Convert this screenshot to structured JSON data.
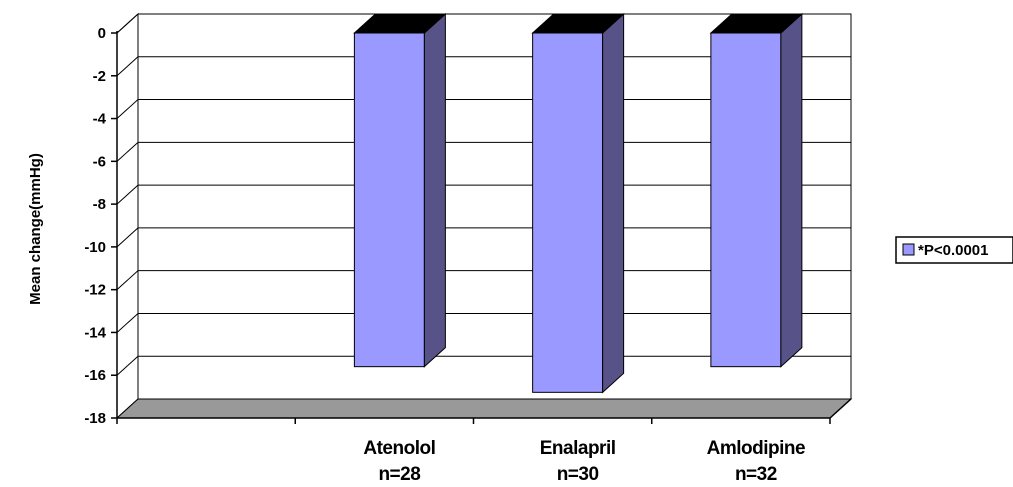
{
  "chart_data": {
    "type": "bar",
    "title": "",
    "xlabel": "",
    "ylabel": "Mean change(mmHg)",
    "ylim": [
      -18,
      0
    ],
    "yticks": [
      "0",
      "-2",
      "-4",
      "-6",
      "-8",
      "-10",
      "-12",
      "-14",
      "-16",
      "-18"
    ],
    "categories": [
      {
        "name": "",
        "n": ""
      },
      {
        "name": "Atenolol",
        "n": "n=28"
      },
      {
        "name": "Enalapril",
        "n": "n=30"
      },
      {
        "name": "Amlodipine",
        "n": "n=32"
      }
    ],
    "series": [
      {
        "name": "*P<0.0001",
        "values": [
          null,
          -15.6,
          -16.8,
          -15.6
        ]
      }
    ],
    "grid": true,
    "legend": "right",
    "colors": {
      "bar_front": "#9999ff",
      "bar_side": "#575388",
      "bar_top": "#000000",
      "floor": "#999999",
      "grid": "#000000"
    }
  }
}
